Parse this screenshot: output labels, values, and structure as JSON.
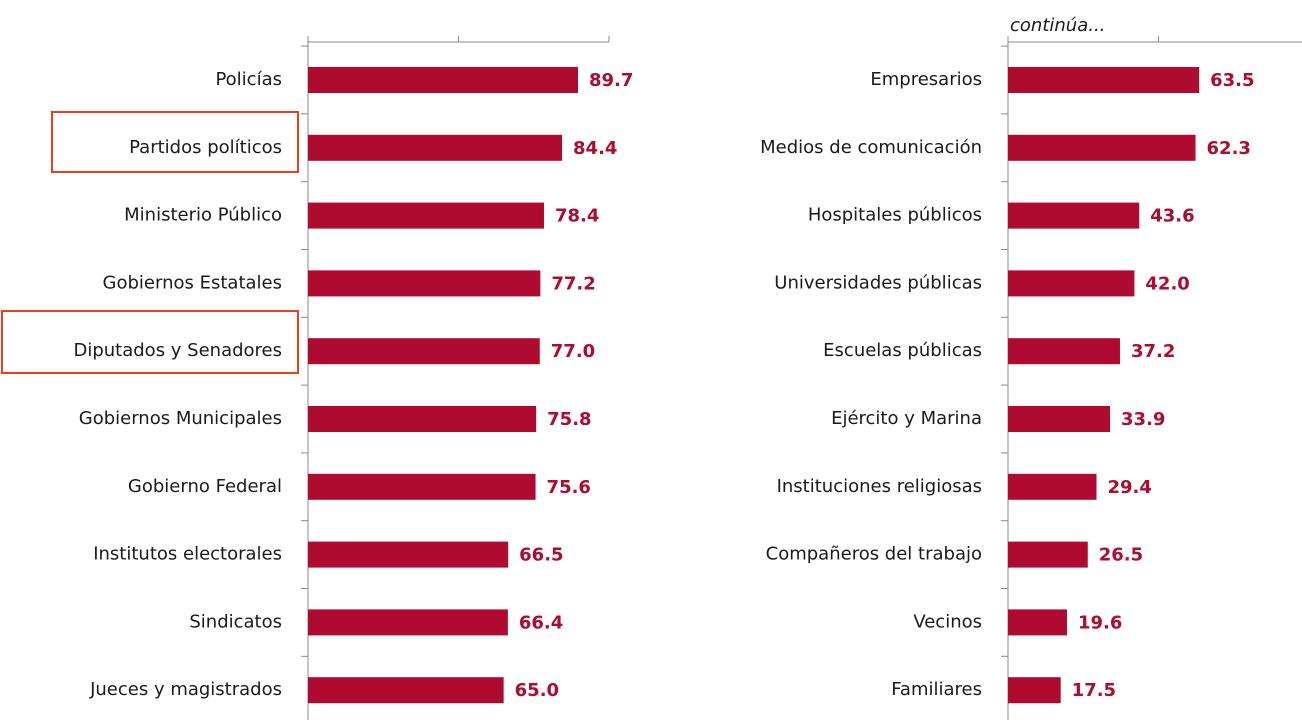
{
  "chart_data": [
    {
      "type": "bar",
      "orientation": "horizontal",
      "color": "#af0a2f",
      "categories": [
        "Policías",
        "Partidos políticos",
        "Ministerio Público",
        "Gobiernos Estatales",
        "Diputados y Senadores",
        "Gobiernos Municipales",
        "Gobierno Federal",
        "Institutos electorales",
        "Sindicatos",
        "Jueces y magistrados"
      ],
      "values": [
        89.7,
        84.4,
        78.4,
        77.2,
        77.0,
        75.8,
        75.6,
        66.5,
        66.4,
        65.0
      ],
      "value_labels": [
        "89.7",
        "84.4",
        "78.4",
        "77.2",
        "77.0",
        "75.8",
        "75.6",
        "66.5",
        "66.4",
        "65.0"
      ],
      "xlim": [
        0,
        100
      ],
      "xticks": [
        0,
        50,
        100
      ]
    },
    {
      "type": "bar",
      "orientation": "horizontal",
      "color": "#af0a2f",
      "annotation": "continúa...",
      "categories": [
        "Empresarios",
        "Medios de comunicación",
        "Hospitales públicos",
        "Universidades públicas",
        "Escuelas públicas",
        "Ejército y Marina",
        "Instituciones religiosas",
        "Compañeros del trabajo",
        "Vecinos",
        "Familiares"
      ],
      "values": [
        63.5,
        62.3,
        43.6,
        42.0,
        37.2,
        33.9,
        29.4,
        26.5,
        19.6,
        17.5
      ],
      "value_labels": [
        "63.5",
        "62.3",
        "43.6",
        "42.0",
        "37.2",
        "33.9",
        "29.4",
        "26.5",
        "19.6",
        "17.5"
      ],
      "xlim": [
        0,
        100
      ],
      "xticks": [
        0,
        50,
        100
      ]
    }
  ]
}
